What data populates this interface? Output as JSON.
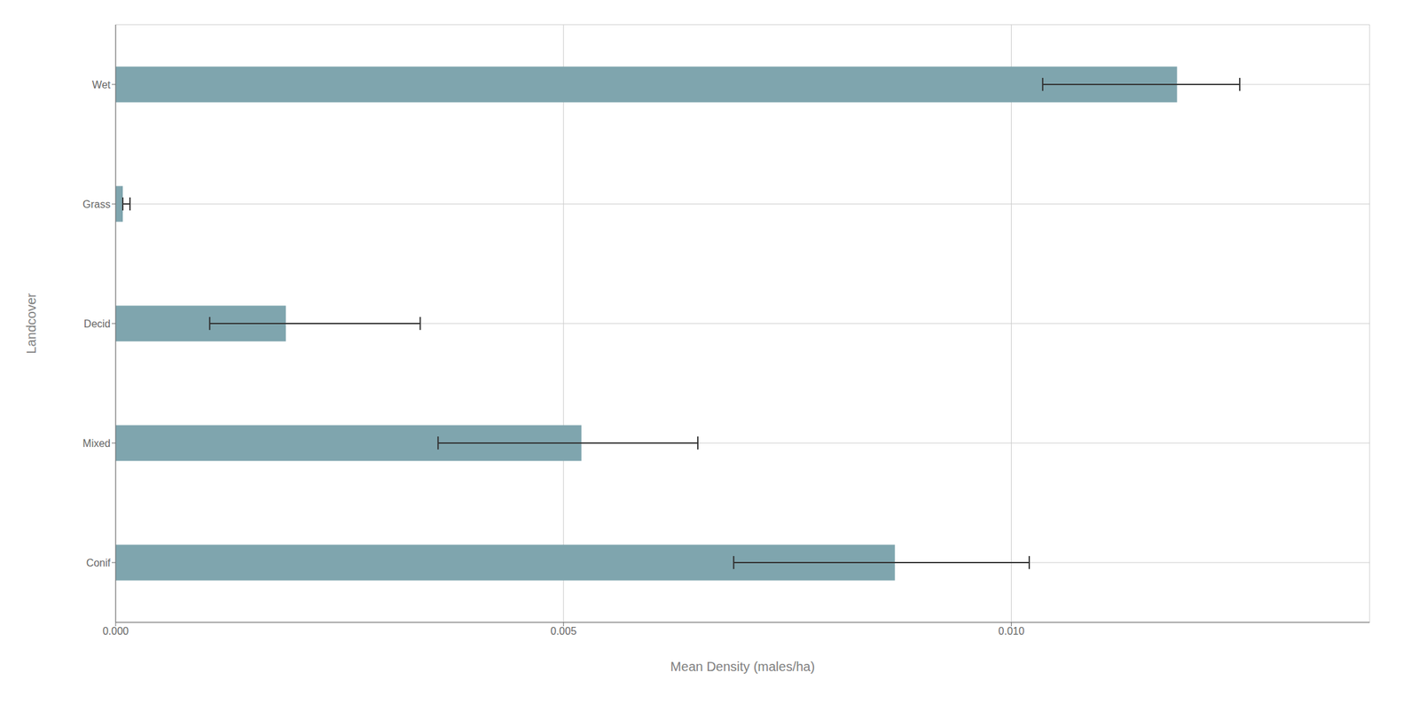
{
  "chart_data": {
    "type": "bar",
    "orientation": "horizontal",
    "categories": [
      "Wet",
      "Grass",
      "Decid",
      "Mixed",
      "Conif"
    ],
    "values": [
      0.01185,
      8e-05,
      0.0019,
      0.0052,
      0.0087
    ],
    "error_centers": [
      0.01035,
      8e-05,
      0.00105,
      0.0036,
      0.0069
    ],
    "error_upper": [
      0.0022,
      8e-05,
      0.00235,
      0.0029,
      0.0033
    ],
    "color": "#7fa5ae",
    "xlabel": "Mean Density (males/ha)",
    "ylabel": "Landcover",
    "xlim": [
      0.0,
      0.014
    ],
    "xticks": [
      {
        "value": 0.0,
        "label": "0.000"
      },
      {
        "value": 0.005,
        "label": "0.005"
      },
      {
        "value": 0.01,
        "label": "0.010"
      }
    ],
    "grid": true
  }
}
